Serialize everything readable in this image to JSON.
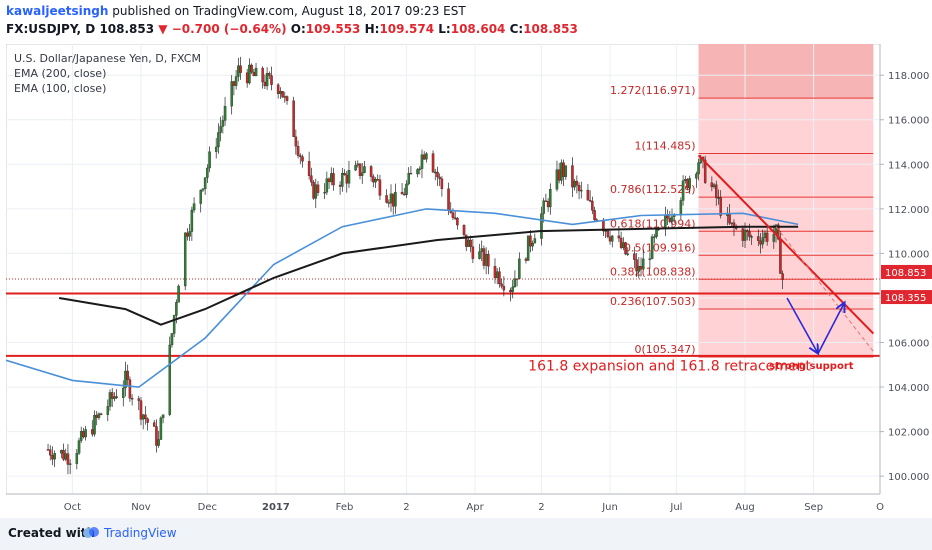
{
  "header": {
    "username": "kawaljeetsingh",
    "published_text": "published on TradingView.com, August 18, 2017 09:23 EST",
    "symbol_line": "FX:USDJPY, D",
    "last_price": "108.853",
    "change": "−0.700 (−0.64%)",
    "open_label": "O:",
    "open": "109.553",
    "high_label": "H:",
    "high": "109.574",
    "low_label": "L:",
    "low": "108.604",
    "close_label": "C:",
    "close": "108.853"
  },
  "legend": [
    "U.S. Dollar/Japanese Yen, D, FXCM",
    "EMA (200, close)",
    "EMA (100, close)"
  ],
  "footer": {
    "created_with": "Created with",
    "brand": "TradingView"
  },
  "colors": {
    "up": "#2e7d32",
    "down": "#c62828",
    "ema_blue": "#4a90d9",
    "ema_black": "#1a1a1a",
    "fib_line": "#e53935",
    "zone": "#ffcdd2",
    "arrow": "#2a2ad6"
  },
  "chart_data": {
    "type": "candlestick",
    "title": "U.S. Dollar/Japanese Yen, D, FXCM",
    "x_ticks": [
      "Oct",
      "Nov",
      "Dec",
      "2017",
      "Feb",
      "2",
      "Apr",
      "2",
      "Jun",
      "Jul",
      "Aug",
      "Sep",
      "O"
    ],
    "y_ticks": [
      "100.000",
      "102.000",
      "104.000",
      "106.000",
      "108.000",
      "110.000",
      "112.000",
      "114.000",
      "116.000",
      "118.000"
    ],
    "ylim": [
      99.2,
      119.4
    ],
    "price_tags": [
      {
        "label": "108.853",
        "value": 108.853
      },
      {
        "label": "108.355",
        "value": 108.355
      }
    ],
    "key_points": [
      {
        "date": "2016-09-20",
        "value": 101.2
      },
      {
        "date": "2016-09-30",
        "value": 100.9
      },
      {
        "date": "2016-10-25",
        "value": 104.3
      },
      {
        "date": "2016-11-09",
        "value": 101.5
      },
      {
        "date": "2016-11-20",
        "value": 110.5
      },
      {
        "date": "2016-12-15",
        "value": 118.2
      },
      {
        "date": "2017-01-03",
        "value": 117.5
      },
      {
        "date": "2017-01-17",
        "value": 112.8
      },
      {
        "date": "2017-02-10",
        "value": 113.8
      },
      {
        "date": "2017-02-25",
        "value": 112.2
      },
      {
        "date": "2017-03-10",
        "value": 114.8
      },
      {
        "date": "2017-03-25",
        "value": 110.8
      },
      {
        "date": "2017-04-17",
        "value": 108.5
      },
      {
        "date": "2017-05-10",
        "value": 113.8
      },
      {
        "date": "2017-06-14",
        "value": 109.2
      },
      {
        "date": "2017-07-11",
        "value": 114.2
      },
      {
        "date": "2017-07-25",
        "value": 111.2
      },
      {
        "date": "2017-08-04",
        "value": 110.7
      },
      {
        "date": "2017-08-15",
        "value": 110.9
      },
      {
        "date": "2017-08-18",
        "value": 108.85
      }
    ],
    "ema_200": [
      {
        "date": "2016-09-25",
        "value": 108.0
      },
      {
        "date": "2016-10-25",
        "value": 107.5
      },
      {
        "date": "2016-11-10",
        "value": 106.8
      },
      {
        "date": "2016-11-30",
        "value": 107.5
      },
      {
        "date": "2016-12-31",
        "value": 108.9
      },
      {
        "date": "2017-01-31",
        "value": 110.0
      },
      {
        "date": "2017-03-15",
        "value": 110.6
      },
      {
        "date": "2017-04-30",
        "value": 111.0
      },
      {
        "date": "2017-06-15",
        "value": 111.1
      },
      {
        "date": "2017-07-31",
        "value": 111.2
      },
      {
        "date": "2017-08-25",
        "value": 111.2
      }
    ],
    "ema_100": [
      {
        "date": "2016-09-01",
        "value": 105.2
      },
      {
        "date": "2016-10-01",
        "value": 104.3
      },
      {
        "date": "2016-10-31",
        "value": 104.0
      },
      {
        "date": "2016-11-30",
        "value": 106.2
      },
      {
        "date": "2016-12-31",
        "value": 109.5
      },
      {
        "date": "2017-01-31",
        "value": 111.2
      },
      {
        "date": "2017-03-10",
        "value": 112.0
      },
      {
        "date": "2017-04-10",
        "value": 111.8
      },
      {
        "date": "2017-05-15",
        "value": 111.3
      },
      {
        "date": "2017-06-15",
        "value": 111.7
      },
      {
        "date": "2017-07-31",
        "value": 111.8
      },
      {
        "date": "2017-08-25",
        "value": 111.3
      }
    ],
    "horizontal_lines": [
      {
        "value": 108.2,
        "style": "solid-thick"
      },
      {
        "value": 105.4,
        "style": "solid-thick"
      }
    ],
    "fib_levels": [
      {
        "label": "1.272(116.971)",
        "value": 116.971
      },
      {
        "label": "1(114.485)",
        "value": 114.485
      },
      {
        "label": "0.786(112.529)",
        "value": 112.529
      },
      {
        "label": "0.618(110.994)",
        "value": 110.994
      },
      {
        "label": "0.5(109.916)",
        "value": 109.916
      },
      {
        "label": "0.382(108.838)",
        "value": 108.838
      },
      {
        "label": "0.236(107.503)",
        "value": 107.503
      },
      {
        "label": "0(105.347)",
        "value": 105.347
      }
    ],
    "fib_range": {
      "start_date": "2017-07-11",
      "end_date": "2017-09-28",
      "top": 119.4,
      "bottom": 105.347
    },
    "trendline": {
      "start": {
        "date": "2017-07-11",
        "value": 114.4
      },
      "end": {
        "date": "2017-09-28",
        "value": 106.4
      }
    },
    "trendline_dashed": {
      "start": {
        "date": "2017-08-15",
        "value": 111.2
      },
      "end": {
        "date": "2017-09-28",
        "value": 105.6
      }
    },
    "projection_arrows": [
      [
        {
          "date": "2017-08-20",
          "value": 108.0
        },
        {
          "date": "2017-09-03",
          "value": 105.5
        }
      ],
      [
        {
          "date": "2017-09-03",
          "value": 105.5
        },
        {
          "date": "2017-09-15",
          "value": 107.8
        }
      ]
    ],
    "annotations": [
      {
        "text": "161.8 expansion and 161.8 retracement",
        "date": "2017-04-25",
        "value": 104.75
      },
      {
        "text": "strong support",
        "date": "2017-08-31",
        "value": 104.8
      }
    ]
  }
}
